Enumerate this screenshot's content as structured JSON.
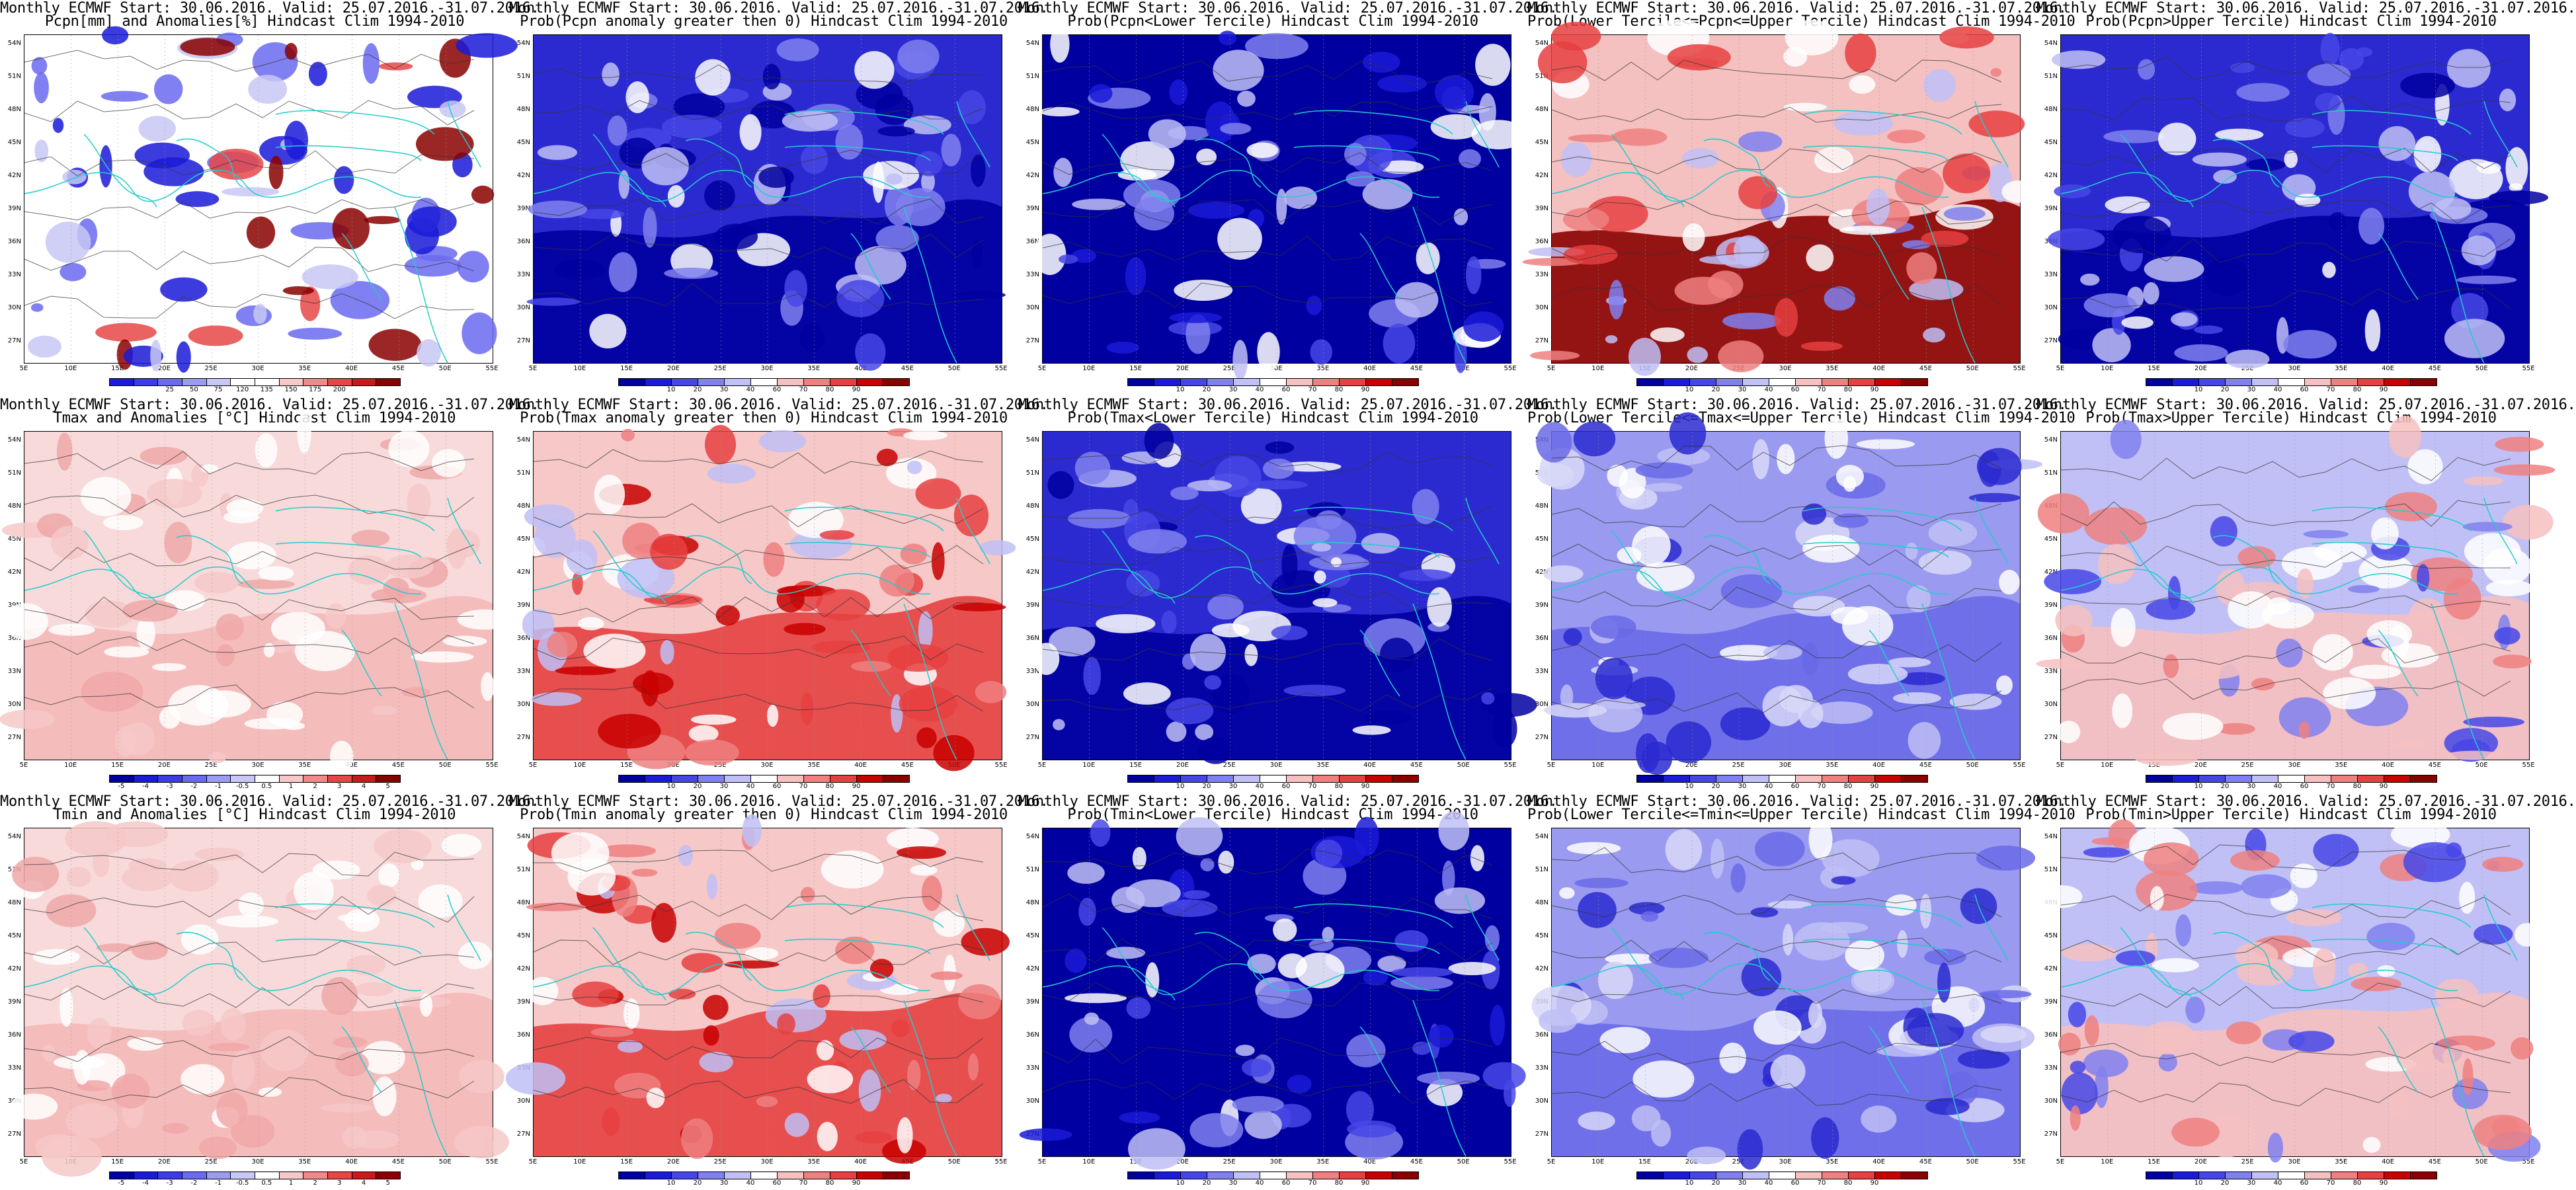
{
  "figure": {
    "lat_labels": [
      "54N",
      "51N",
      "48N",
      "45N",
      "42N",
      "39N",
      "36N",
      "33N",
      "30N",
      "27N"
    ],
    "lon_labels": [
      "5E",
      "10E",
      "15E",
      "20E",
      "25E",
      "30E",
      "35E",
      "40E",
      "45E",
      "50E",
      "55E"
    ],
    "ocean_color": "#1a1aa8"
  },
  "scales": {
    "pcpn_anom": {
      "ticks": [
        "25",
        "50",
        "75",
        "120",
        "135",
        "150",
        "175",
        "200"
      ],
      "colors": [
        "#1a1ad8",
        "#3b3be8",
        "#6a6af0",
        "#9b9bf2",
        "#c8c8f6",
        "#ffffff",
        "#ffffff",
        "#f6c8c8",
        "#f08a8a",
        "#e64646",
        "#c81a1a",
        "#8a0000"
      ]
    },
    "temp_anom": {
      "ticks": [
        "-5",
        "-4",
        "-3",
        "-2",
        "-1",
        "-0.5",
        "0.5",
        "1",
        "2",
        "3",
        "4",
        "5"
      ],
      "colors": [
        "#0000a0",
        "#1a1ad8",
        "#3b3be8",
        "#6a6af0",
        "#9b9bf2",
        "#c8c8f6",
        "#ffffff",
        "#f6c8c8",
        "#f08a8a",
        "#e64646",
        "#c81a1a",
        "#8a0000"
      ]
    },
    "prob": {
      "ticks": [
        "10",
        "20",
        "30",
        "40",
        "60",
        "70",
        "80",
        "90"
      ],
      "colors": [
        "#0000a0",
        "#1a1ad8",
        "#4646e6",
        "#8080ee",
        "#c0c0f6",
        "#ffffff",
        "#f6c0c0",
        "#ee8080",
        "#e64040",
        "#c80000",
        "#8a0000"
      ]
    }
  },
  "panels": [
    {
      "title1": "Monthly ECMWF Start: 30.06.2016. Valid: 25.07.2016.-31.07.2016.",
      "title2": "Pcpn[mm] and Anomalies[%] Hindcast Clim 1994-2010",
      "scale": "pcpn_anom",
      "field": "pcpn"
    },
    {
      "title1": "Monthly ECMWF Start: 30.06.2016. Valid: 25.07.2016.-31.07.2016.",
      "title2": "Prob(Pcpn anomaly greater then 0) Hindcast Clim 1994-2010",
      "scale": "prob",
      "field": "blue_strong"
    },
    {
      "title1": "Monthly ECMWF Start: 30.06.2016. Valid: 25.07.2016.-31.07.2016.",
      "title2": "Prob(Pcpn<Lower Tercile) Hindcast Clim 1994-2010",
      "scale": "prob",
      "field": "blue_max"
    },
    {
      "title1": "Monthly ECMWF Start: 30.06.2016. Valid: 25.07.2016.-31.07.2016.",
      "title2": "Prob(Lower Tercile<=Pcpn<=Upper Tercile) Hindcast Clim 1994-2010",
      "scale": "prob",
      "field": "red_south"
    },
    {
      "title1": "Monthly ECMWF Start: 30.06.2016. Valid: 25.07.2016.-31.07.2016.",
      "title2": "Prob(Pcpn>Upper Tercile) Hindcast Clim 1994-2010",
      "scale": "prob",
      "field": "blue_strong"
    },
    {
      "title1": "Monthly ECMWF Start: 30.06.2016. Valid: 25.07.2016.-31.07.2016.",
      "title2": "Tmax and Anomalies [°C] Hindcast Clim 1994-2010",
      "scale": "temp_anom",
      "field": "pink"
    },
    {
      "title1": "Monthly ECMWF Start: 30.06.2016. Valid: 25.07.2016.-31.07.2016.",
      "title2": "Prob(Tmax anomaly greater then 0) Hindcast Clim 1994-2010",
      "scale": "prob",
      "field": "red_center"
    },
    {
      "title1": "Monthly ECMWF Start: 30.06.2016. Valid: 25.07.2016.-31.07.2016.",
      "title2": "Prob(Tmax<Lower Tercile) Hindcast Clim 1994-2010",
      "scale": "prob",
      "field": "blue_strong"
    },
    {
      "title1": "Monthly ECMWF Start: 30.06.2016. Valid: 25.07.2016.-31.07.2016.",
      "title2": "Prob(Lower Tercile<=Tmax<=Upper Tercile) Hindcast Clim 1994-2010",
      "scale": "prob",
      "field": "blue_light"
    },
    {
      "title1": "Monthly ECMWF Start: 30.06.2016. Valid: 25.07.2016.-31.07.2016.",
      "title2": "Prob(Tmax>Upper Tercile) Hindcast Clim 1994-2010",
      "scale": "prob",
      "field": "red_spot"
    },
    {
      "title1": "Monthly ECMWF Start: 30.06.2016. Valid: 25.07.2016.-31.07.2016.",
      "title2": "Tmin and Anomalies [°C] Hindcast Clim 1994-2010",
      "scale": "temp_anom",
      "field": "pink"
    },
    {
      "title1": "Monthly ECMWF Start: 30.06.2016. Valid: 25.07.2016.-31.07.2016.",
      "title2": "Prob(Tmin anomaly greater then 0) Hindcast Clim 1994-2010",
      "scale": "prob",
      "field": "red_center"
    },
    {
      "title1": "Monthly ECMWF Start: 30.06.2016. Valid: 25.07.2016.-31.07.2016.",
      "title2": "Prob(Tmin<Lower Tercile) Hindcast Clim 1994-2010",
      "scale": "prob",
      "field": "blue_max"
    },
    {
      "title1": "Monthly ECMWF Start: 30.06.2016. Valid: 25.07.2016.-31.07.2016.",
      "title2": "Prob(Lower Tercile<=Tmin<=Upper Tercile) Hindcast Clim 1994-2010",
      "scale": "prob",
      "field": "blue_light"
    },
    {
      "title1": "Monthly ECMWF Start: 30.06.2016. Valid: 25.07.2016.-31.07.2016.",
      "title2": "Prob(Tmin>Upper Tercile) Hindcast Clim 1994-2010",
      "scale": "prob",
      "field": "red_spot"
    }
  ]
}
